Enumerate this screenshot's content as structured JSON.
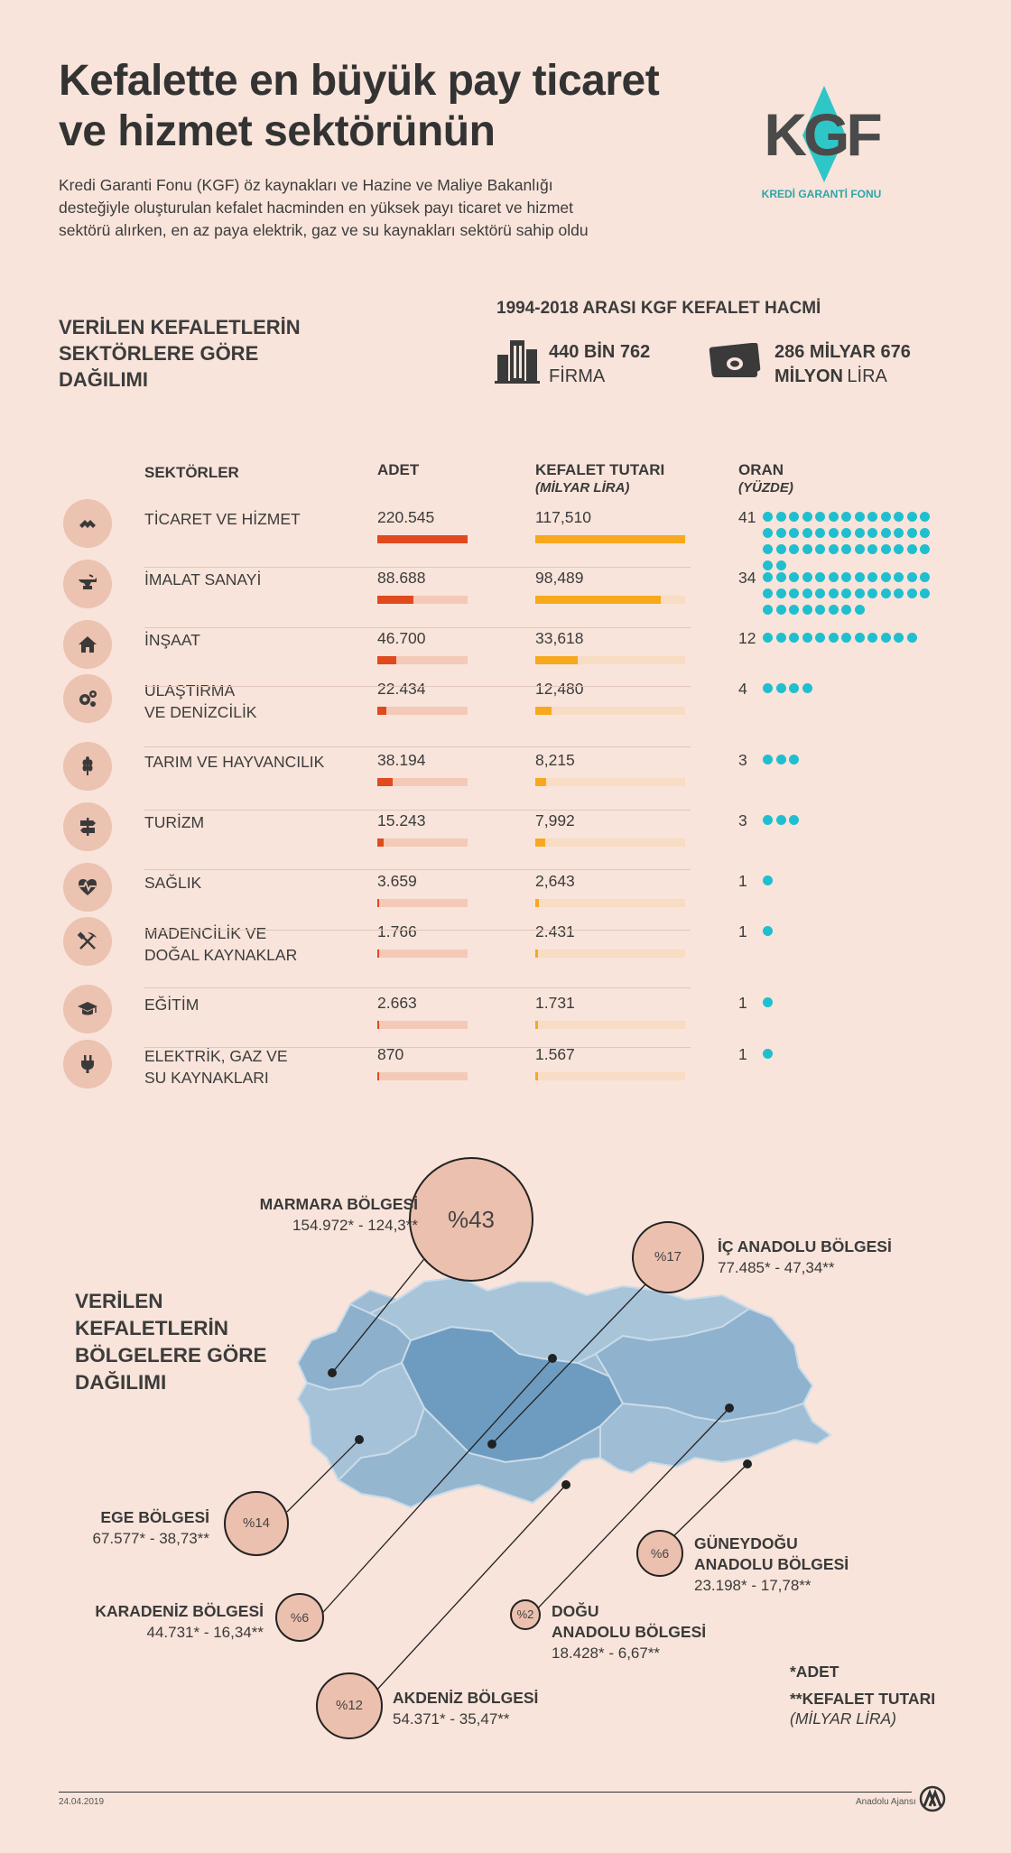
{
  "title": "Kefalette en büyük pay ticaret ve hizmet sektörünün",
  "intro": "Kredi Garanti Fonu (KGF) öz kaynakları ve Hazine ve Maliye Bakanlığı desteğiyle oluşturulan kefalet hacminden en yüksek payı ticaret ve hizmet sektörü alırken, en az paya elektrik, gaz ve su kaynakları sektörü sahip oldu",
  "logo": {
    "mark": "KGF",
    "name": "KREDİ GARANTİ FONU"
  },
  "sector_section_title": "VERİLEN KEFALETLERİN SEKTÖRLERE GÖRE DAĞILIMI",
  "volume": {
    "title": "1994-2018 ARASI KGF KEFALET HACMİ",
    "firms_num": "440 BİN 762",
    "firms_unit": "FİRMA",
    "amount_num": "286 MİLYAR 676",
    "amount_bold2": "MİLYON",
    "amount_unit": "LİRA"
  },
  "table_headers": {
    "sector": "SEKTÖRLER",
    "count": "ADET",
    "amount": "KEFALET TUTARI",
    "amount_sub": "(MİLYAR LİRA)",
    "ratio": "ORAN",
    "ratio_sub": "(YÜZDE)"
  },
  "chart_data": [
    {
      "type": "table",
      "columns": [
        "SEKTÖRLER",
        "ADET",
        "KEFALET TUTARI (MİLYAR LİRA)",
        "ORAN (YÜZDE)"
      ],
      "rows": [
        {
          "sector": "TİCARET VE HİZMET",
          "icon": "handshake-icon",
          "count": 220545,
          "count_label": "220.545",
          "amount": 117.51,
          "amount_label": "117,510",
          "ratio": 41
        },
        {
          "sector": "İMALAT SANAYİ",
          "icon": "anvil-icon",
          "count": 88688,
          "count_label": "88.688",
          "amount": 98.489,
          "amount_label": "98,489",
          "ratio": 34
        },
        {
          "sector": "İNŞAAT",
          "icon": "house-icon",
          "count": 46700,
          "count_label": "46.700",
          "amount": 33.618,
          "amount_label": "33,618",
          "ratio": 12
        },
        {
          "sector": "ULAŞTIRMA VE DENİZCİLİK",
          "sector_lines": [
            "ULAŞTIRMA",
            "VE DENİZCİLİK"
          ],
          "icon": "gears-icon",
          "count": 22434,
          "count_label": "22.434",
          "amount": 12.48,
          "amount_label": "12,480",
          "ratio": 4
        },
        {
          "sector": "TARIM VE HAYVANCILIK",
          "icon": "wheat-icon",
          "count": 38194,
          "count_label": "38.194",
          "amount": 8.215,
          "amount_label": "8,215",
          "ratio": 3
        },
        {
          "sector": "TURİZM",
          "icon": "signpost-icon",
          "count": 15243,
          "count_label": "15.243",
          "amount": 7.992,
          "amount_label": "7,992",
          "ratio": 3
        },
        {
          "sector": "SAĞLIK",
          "icon": "heartbeat-icon",
          "count": 3659,
          "count_label": "3.659",
          "amount": 2.643,
          "amount_label": "2,643",
          "ratio": 1
        },
        {
          "sector": "MADENCİLİK VE DOĞAL KAYNAKLAR",
          "sector_lines": [
            "MADENCİLİK VE",
            "DOĞAL KAYNAKLAR"
          ],
          "icon": "pickaxe-icon",
          "count": 1766,
          "count_label": "1.766",
          "amount": 2.431,
          "amount_label": "2.431",
          "ratio": 1
        },
        {
          "sector": "EĞİTİM",
          "icon": "graduation-cap-icon",
          "count": 2663,
          "count_label": "2.663",
          "amount": 1.731,
          "amount_label": "1.731",
          "ratio": 1
        },
        {
          "sector": "ELEKTRİK, GAZ VE SU KAYNAKLARI",
          "sector_lines": [
            "ELEKTRİK, GAZ VE",
            "SU KAYNAKLARI"
          ],
          "icon": "plug-icon",
          "count": 870,
          "count_label": "870",
          "amount": 1.567,
          "amount_label": "1.567",
          "ratio": 1
        }
      ]
    },
    {
      "type": "bubble-map",
      "title": "VERİLEN KEFALETLERİN BÖLGELERE GÖRE DAĞILIMI",
      "regions": [
        {
          "name": "MARMARA BÖLGESİ",
          "percent_label": "%43",
          "percent": 43,
          "count": "154.972*",
          "amount": "124,3**"
        },
        {
          "name": "İÇ ANADOLU BÖLGESİ",
          "percent_label": "%17",
          "percent": 17,
          "count": "77.485*",
          "amount": "47,34**"
        },
        {
          "name": "EGE  BÖLGESİ",
          "percent_label": "%14",
          "percent": 14,
          "count": "67.577*",
          "amount": "38,73**"
        },
        {
          "name": "KARADENİZ BÖLGESİ",
          "percent_label": "%6",
          "percent": 6,
          "count": "44.731*",
          "amount": "16,34**"
        },
        {
          "name": "AKDENİZ  BÖLGESİ",
          "percent_label": "%12",
          "percent": 12,
          "count": "54.371*",
          "amount": "35,47**"
        },
        {
          "name_lines": [
            "DOĞU",
            "ANADOLU BÖLGESİ"
          ],
          "name": "DOĞU ANADOLU BÖLGESİ",
          "percent_label": "%2",
          "percent": 2,
          "count": "18.428*",
          "amount": "6,67**"
        },
        {
          "name_lines": [
            "GÜNEYDOĞU",
            "ANADOLU BÖLGESİ"
          ],
          "name": "GÜNEYDOĞU ANADOLU BÖLGESİ",
          "percent_label": "%6",
          "percent": 6,
          "count": "23.198*",
          "amount": "17,78**"
        }
      ]
    }
  ],
  "legend": {
    "count_note": "*ADET",
    "amount_note": "**KEFALET TUTARI",
    "amount_sub": "(MİLYAR LİRA)"
  },
  "footer": {
    "date": "24.04.2019",
    "agency": "Anadolu Ajansı"
  },
  "colors": {
    "count_bar": "#e04a1e",
    "count_bg": "#f4c9b8",
    "amount_bar": "#f7a81d",
    "amount_bg": "#f8dcc3",
    "dots": "#1fbfcf",
    "map": "#8fb5d0"
  }
}
